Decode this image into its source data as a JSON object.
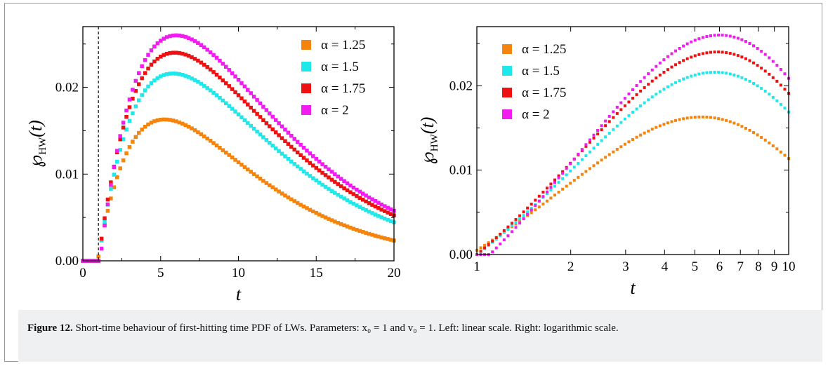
{
  "caption": {
    "label": "Figure 12.",
    "text": "Short-time behaviour of first-hitting time PDF of LWs. Parameters: x₀ = 1 and v₀ = 1. Left: linear scale. Right: logarithmic scale."
  },
  "chart_data": [
    {
      "type": "scatter",
      "panel": "left",
      "xscale": "linear",
      "xlabel": "t",
      "ylabel": "℘_HW(t)",
      "xlim": [
        0,
        20
      ],
      "ylim": [
        0,
        0.027
      ],
      "xticks": [
        0,
        5,
        10,
        15,
        20
      ],
      "yticks": [
        0.0,
        0.01,
        0.02
      ],
      "ytick_labels": [
        "0.00",
        "0.01",
        "0.02"
      ],
      "vline_x": 1.0,
      "legend_position": "top-right",
      "series": [
        {
          "name": "α = 1.25",
          "color": "#f5840c",
          "amp": 0.0163,
          "peak": 5.25,
          "t0": 0.95
        },
        {
          "name": "α = 1.5",
          "color": "#1ee8ea",
          "amp": 0.0216,
          "peak": 5.8,
          "t0": 1.0
        },
        {
          "name": "α = 1.75",
          "color": "#ee1111",
          "amp": 0.024,
          "peak": 5.9,
          "t0": 1.0
        },
        {
          "name": "α = 2",
          "color": "#f01cf0",
          "amp": 0.026,
          "peak": 6.0,
          "t0": 1.1
        }
      ]
    },
    {
      "type": "scatter",
      "panel": "right",
      "xscale": "log",
      "xlabel": "t",
      "ylabel": "℘_HW(t)",
      "xlim": [
        1,
        10
      ],
      "ylim": [
        0,
        0.027
      ],
      "xticks": [
        1,
        2,
        3,
        4,
        5,
        6,
        7,
        8,
        9,
        10
      ],
      "xtick_labels": [
        "1",
        "2",
        "3",
        "4",
        "5",
        "6",
        "7",
        "8",
        "9",
        "10"
      ],
      "yticks": [
        0.0,
        0.01,
        0.02
      ],
      "ytick_labels": [
        "0.00",
        "0.01",
        "0.02"
      ],
      "legend_position": "top-left",
      "series": [
        {
          "name": "α = 1.25",
          "color": "#f5840c",
          "amp": 0.0163,
          "peak": 5.25,
          "t0": 0.95
        },
        {
          "name": "α = 1.5",
          "color": "#1ee8ea",
          "amp": 0.0216,
          "peak": 5.8,
          "t0": 1.0
        },
        {
          "name": "α = 1.75",
          "color": "#ee1111",
          "amp": 0.024,
          "peak": 5.9,
          "t0": 1.0
        },
        {
          "name": "α = 2",
          "color": "#f01cf0",
          "amp": 0.026,
          "peak": 6.0,
          "t0": 1.1
        }
      ]
    }
  ]
}
